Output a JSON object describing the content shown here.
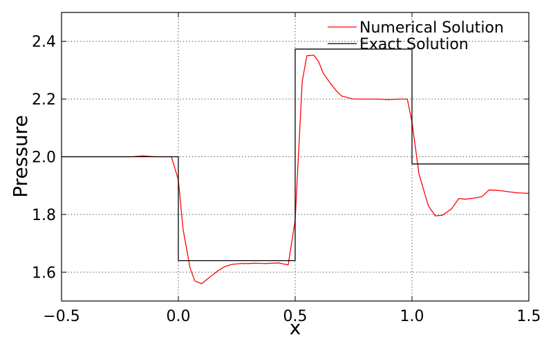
{
  "chart_data": {
    "type": "line",
    "title": "",
    "xlabel": "x",
    "ylabel": "Pressure",
    "xlim": [
      -0.5,
      1.5
    ],
    "ylim": [
      1.5,
      2.5
    ],
    "grid": true,
    "legend_position": "top-right",
    "x_ticks": [
      -0.5,
      0.0,
      0.5,
      1.0,
      1.5
    ],
    "x_tick_labels": [
      "−0.5",
      "0.0",
      "0.5",
      "1.0",
      "1.5"
    ],
    "y_ticks": [
      1.6,
      1.8,
      2.0,
      2.2,
      2.4
    ],
    "y_tick_labels": [
      "1.6",
      "1.8",
      "2.0",
      "2.2",
      "2.4"
    ],
    "series": [
      {
        "name": "Numerical Solution",
        "color": "#ff0000",
        "x": [
          -0.5,
          -0.45,
          -0.4,
          -0.35,
          -0.3,
          -0.25,
          -0.2,
          -0.15,
          -0.1,
          -0.05,
          -0.03,
          0.0,
          0.02,
          0.05,
          0.07,
          0.1,
          0.13,
          0.17,
          0.2,
          0.23,
          0.27,
          0.3,
          0.33,
          0.37,
          0.4,
          0.43,
          0.47,
          0.5,
          0.53,
          0.55,
          0.58,
          0.6,
          0.62,
          0.65,
          0.68,
          0.7,
          0.75,
          0.8,
          0.85,
          0.9,
          0.95,
          0.98,
          1.0,
          1.03,
          1.07,
          1.1,
          1.13,
          1.17,
          1.2,
          1.23,
          1.27,
          1.3,
          1.33,
          1.37,
          1.4,
          1.45,
          1.5
        ],
        "y": [
          2.0,
          2.0,
          2.0,
          2.0,
          2.0,
          2.0,
          2.0,
          2.003,
          2.0,
          2.0,
          2.0,
          1.92,
          1.75,
          1.615,
          1.57,
          1.56,
          1.58,
          1.605,
          1.62,
          1.627,
          1.63,
          1.63,
          1.631,
          1.63,
          1.631,
          1.632,
          1.625,
          1.78,
          2.26,
          2.35,
          2.352,
          2.33,
          2.29,
          2.255,
          2.225,
          2.21,
          2.2,
          2.2,
          2.2,
          2.198,
          2.2,
          2.2,
          2.12,
          1.94,
          1.83,
          1.795,
          1.797,
          1.82,
          1.855,
          1.853,
          1.857,
          1.862,
          1.885,
          1.883,
          1.88,
          1.875,
          1.873
        ]
      },
      {
        "name": "Exact Solution",
        "color": "#000000",
        "x": [
          -0.5,
          0.0,
          0.0,
          0.5,
          0.5,
          1.0,
          1.0,
          1.5
        ],
        "y": [
          2.0,
          2.0,
          1.64,
          1.64,
          2.373,
          2.373,
          1.975,
          1.975
        ]
      }
    ]
  }
}
